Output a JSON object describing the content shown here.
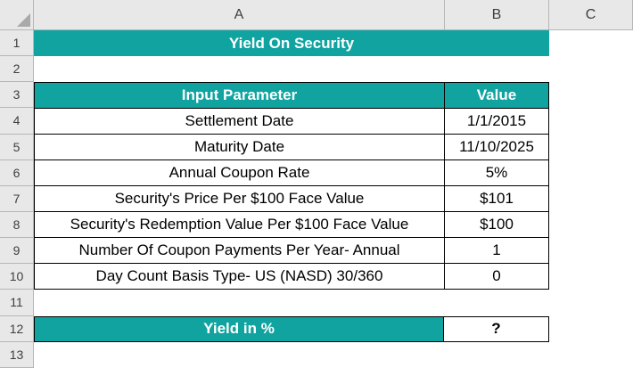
{
  "colors": {
    "accent_teal": "#10A3A0",
    "header_gray": "#E8E8E8",
    "table_border": "#000000"
  },
  "column_headers": [
    "A",
    "B",
    "C"
  ],
  "row_headers": [
    "1",
    "2",
    "3",
    "4",
    "5",
    "6",
    "7",
    "8",
    "9",
    "10",
    "11",
    "12",
    "13"
  ],
  "title_banner": "Yield On Security",
  "table": {
    "header": {
      "param": "Input Parameter",
      "value": "Value"
    },
    "rows": [
      {
        "param": "Settlement Date",
        "value": "1/1/2015"
      },
      {
        "param": "Maturity Date",
        "value": "11/10/2025"
      },
      {
        "param": "Annual Coupon Rate",
        "value": "5%"
      },
      {
        "param": "Security's Price Per $100 Face Value",
        "value": "$101"
      },
      {
        "param": "Security's Redemption Value Per $100 Face Value",
        "value": "$100"
      },
      {
        "param": "Number Of Coupon Payments Per Year- Annual",
        "value": "1"
      },
      {
        "param": "Day Count Basis Type- US (NASD) 30/360",
        "value": "0"
      }
    ]
  },
  "result": {
    "label": "Yield in %",
    "value": "?"
  }
}
